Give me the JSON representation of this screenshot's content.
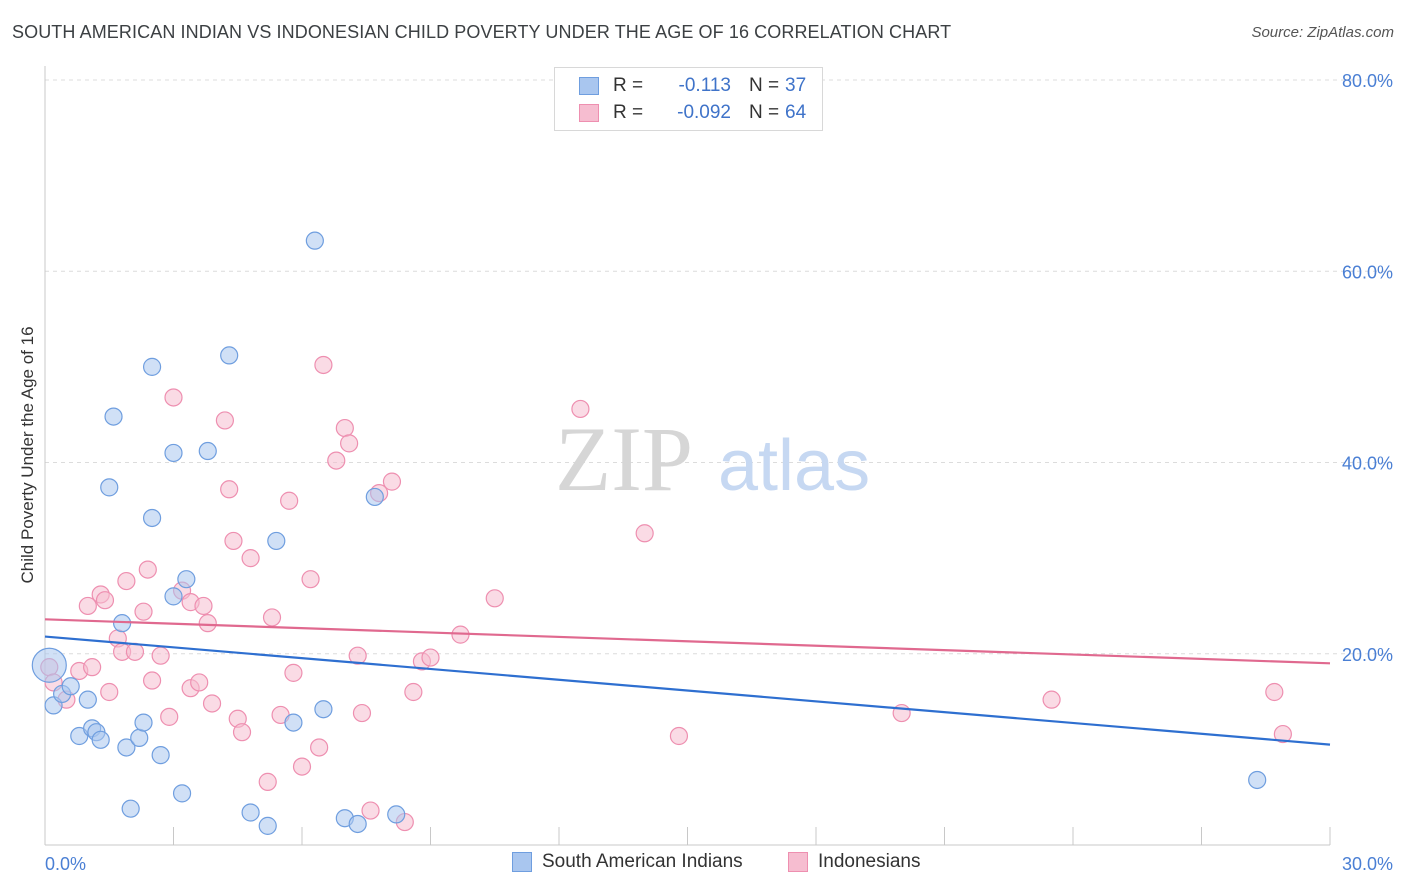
{
  "title": "SOUTH AMERICAN INDIAN VS INDONESIAN CHILD POVERTY UNDER THE AGE OF 16 CORRELATION CHART",
  "source": "Source: ZipAtlas.com",
  "watermark": {
    "zip": "ZIP",
    "atlas": "atlas"
  },
  "colors": {
    "blue_fill": "#a9c6ef",
    "blue_stroke": "#6f9edf",
    "blue_line": "#2e6fd0",
    "pink_fill": "#f6bdd0",
    "pink_stroke": "#ee8fb0",
    "pink_line": "#e0698f",
    "tick_text": "#4a7fd4",
    "grid": "#dcdcdc"
  },
  "legend": {
    "rows": [
      {
        "r_label": "R =",
        "r_value": "-0.113",
        "n_label": "N =",
        "n_value": "37"
      },
      {
        "r_label": "R =",
        "r_value": "-0.092",
        "n_label": "N =",
        "n_value": "64"
      }
    ]
  },
  "bottom_legend": {
    "series1": "South American Indians",
    "series2": "Indonesians"
  },
  "chart_data": {
    "type": "scatter",
    "title": "SOUTH AMERICAN INDIAN VS INDONESIAN CHILD POVERTY UNDER THE AGE OF 16 CORRELATION CHART",
    "xlabel": "",
    "ylabel": "Child Poverty Under the Age of 16",
    "xlim": [
      0,
      30
    ],
    "ylim": [
      0,
      80
    ],
    "x_tick_labels": [
      "0.0%",
      "30.0%"
    ],
    "y_ticks": [
      20,
      40,
      60,
      80
    ],
    "y_tick_labels": [
      "20.0%",
      "40.0%",
      "60.0%",
      "80.0%"
    ],
    "series": [
      {
        "name": "South American Indians",
        "trend": {
          "x": [
            0,
            30
          ],
          "y": [
            21.8,
            10.5
          ]
        },
        "points": [
          {
            "x": 0.1,
            "y": 18.8,
            "big": true
          },
          {
            "x": 0.2,
            "y": 14.6
          },
          {
            "x": 0.4,
            "y": 15.8
          },
          {
            "x": 0.6,
            "y": 16.6
          },
          {
            "x": 0.8,
            "y": 11.4
          },
          {
            "x": 1.0,
            "y": 15.2
          },
          {
            "x": 1.1,
            "y": 12.2
          },
          {
            "x": 1.2,
            "y": 11.8
          },
          {
            "x": 1.3,
            "y": 11.0
          },
          {
            "x": 1.5,
            "y": 37.4
          },
          {
            "x": 1.6,
            "y": 44.8
          },
          {
            "x": 1.8,
            "y": 23.2
          },
          {
            "x": 1.9,
            "y": 10.2
          },
          {
            "x": 2.0,
            "y": 3.8
          },
          {
            "x": 2.2,
            "y": 11.2
          },
          {
            "x": 2.3,
            "y": 12.8
          },
          {
            "x": 2.5,
            "y": 50.0
          },
          {
            "x": 2.5,
            "y": 34.2
          },
          {
            "x": 2.7,
            "y": 9.4
          },
          {
            "x": 3.0,
            "y": 41.0
          },
          {
            "x": 3.2,
            "y": 5.4
          },
          {
            "x": 3.0,
            "y": 26.0
          },
          {
            "x": 3.3,
            "y": 27.8
          },
          {
            "x": 3.8,
            "y": 41.2
          },
          {
            "x": 4.3,
            "y": 51.2
          },
          {
            "x": 4.8,
            "y": 3.4
          },
          {
            "x": 5.2,
            "y": 2.0
          },
          {
            "x": 5.4,
            "y": 31.8
          },
          {
            "x": 5.8,
            "y": 12.8
          },
          {
            "x": 6.3,
            "y": 63.2
          },
          {
            "x": 6.5,
            "y": 14.2
          },
          {
            "x": 7.0,
            "y": 2.8
          },
          {
            "x": 7.3,
            "y": 2.2
          },
          {
            "x": 7.7,
            "y": 36.4
          },
          {
            "x": 8.2,
            "y": 3.2
          },
          {
            "x": 28.3,
            "y": 6.8
          }
        ]
      },
      {
        "name": "Indonesians",
        "trend": {
          "x": [
            0,
            30
          ],
          "y": [
            23.6,
            19.0
          ]
        },
        "points": [
          {
            "x": 0.1,
            "y": 18.6
          },
          {
            "x": 0.2,
            "y": 17.0
          },
          {
            "x": 0.5,
            "y": 15.2
          },
          {
            "x": 0.8,
            "y": 18.2
          },
          {
            "x": 1.0,
            "y": 25.0
          },
          {
            "x": 1.1,
            "y": 18.6
          },
          {
            "x": 1.3,
            "y": 26.2
          },
          {
            "x": 1.4,
            "y": 25.6
          },
          {
            "x": 1.5,
            "y": 16.0
          },
          {
            "x": 1.7,
            "y": 21.6
          },
          {
            "x": 1.8,
            "y": 20.2
          },
          {
            "x": 1.9,
            "y": 27.6
          },
          {
            "x": 2.1,
            "y": 20.2
          },
          {
            "x": 2.3,
            "y": 24.4
          },
          {
            "x": 2.4,
            "y": 28.8
          },
          {
            "x": 2.5,
            "y": 17.2
          },
          {
            "x": 2.7,
            "y": 19.8
          },
          {
            "x": 2.9,
            "y": 13.4
          },
          {
            "x": 3.0,
            "y": 46.8
          },
          {
            "x": 3.2,
            "y": 26.6
          },
          {
            "x": 3.4,
            "y": 25.4
          },
          {
            "x": 3.4,
            "y": 16.4
          },
          {
            "x": 3.6,
            "y": 17.0
          },
          {
            "x": 3.7,
            "y": 25.0
          },
          {
            "x": 3.8,
            "y": 23.2
          },
          {
            "x": 3.9,
            "y": 14.8
          },
          {
            "x": 4.2,
            "y": 44.4
          },
          {
            "x": 4.3,
            "y": 37.2
          },
          {
            "x": 4.4,
            "y": 31.8
          },
          {
            "x": 4.5,
            "y": 13.2
          },
          {
            "x": 4.6,
            "y": 11.8
          },
          {
            "x": 4.8,
            "y": 30.0
          },
          {
            "x": 5.2,
            "y": 6.6
          },
          {
            "x": 5.3,
            "y": 23.8
          },
          {
            "x": 5.5,
            "y": 13.6
          },
          {
            "x": 5.7,
            "y": 36.0
          },
          {
            "x": 5.8,
            "y": 18.0
          },
          {
            "x": 6.2,
            "y": 27.8
          },
          {
            "x": 6.0,
            "y": 8.2
          },
          {
            "x": 6.4,
            "y": 10.2
          },
          {
            "x": 6.5,
            "y": 50.2
          },
          {
            "x": 6.8,
            "y": 40.2
          },
          {
            "x": 7.0,
            "y": 43.6
          },
          {
            "x": 7.1,
            "y": 42.0
          },
          {
            "x": 7.3,
            "y": 19.8
          },
          {
            "x": 7.4,
            "y": 13.8
          },
          {
            "x": 7.6,
            "y": 3.6
          },
          {
            "x": 7.8,
            "y": 36.8
          },
          {
            "x": 8.1,
            "y": 38.0
          },
          {
            "x": 8.4,
            "y": 2.4
          },
          {
            "x": 8.6,
            "y": 16.0
          },
          {
            "x": 8.8,
            "y": 19.2
          },
          {
            "x": 9.0,
            "y": 19.6
          },
          {
            "x": 9.7,
            "y": 22.0
          },
          {
            "x": 10.5,
            "y": 25.8
          },
          {
            "x": 12.5,
            "y": 45.6
          },
          {
            "x": 14.0,
            "y": 32.6
          },
          {
            "x": 14.8,
            "y": 11.4
          },
          {
            "x": 20.0,
            "y": 13.8
          },
          {
            "x": 23.5,
            "y": 15.2
          },
          {
            "x": 28.7,
            "y": 16.0
          },
          {
            "x": 28.9,
            "y": 11.6
          }
        ]
      }
    ]
  }
}
